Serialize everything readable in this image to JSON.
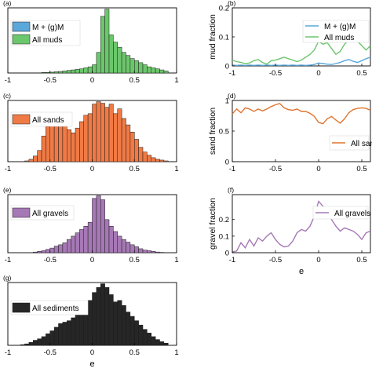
{
  "chart_data": [
    {
      "id": "a",
      "panel_label": "(a)",
      "type": "bar",
      "stacked": false,
      "xlim": [
        -1,
        1
      ],
      "xticks": [
        -1,
        -0.5,
        0,
        0.5,
        1
      ],
      "xtick_labels": [
        "-1",
        "-0.5",
        "0",
        "0.5",
        "1"
      ],
      "bin_edges": [
        -0.6,
        -0.55,
        -0.5,
        -0.45,
        -0.4,
        -0.35,
        -0.3,
        -0.25,
        -0.2,
        -0.15,
        -0.1,
        -0.05,
        0,
        0.05,
        0.1,
        0.15,
        0.2,
        0.25,
        0.3,
        0.35,
        0.4,
        0.45,
        0.5,
        0.55,
        0.6,
        0.65,
        0.7,
        0.75,
        0.8,
        0.85,
        0.9
      ],
      "series": [
        {
          "name": "M + (g)M",
          "color": "#5aa7da",
          "values": [
            0,
            0,
            0,
            0,
            0,
            0,
            0,
            0,
            0,
            0,
            0,
            0.005,
            0.02,
            0.06,
            0.1,
            0.1,
            0.07,
            0.055,
            0.07,
            0.06,
            0.03,
            0.015,
            0.01,
            0.008,
            0.006,
            0.004,
            0.003,
            0.002,
            0.001,
            0.001
          ]
        },
        {
          "name": "All muds",
          "color": "#6cc66c",
          "values": [
            0.005,
            0.005,
            0.008,
            0.012,
            0.015,
            0.02,
            0.025,
            0.03,
            0.035,
            0.04,
            0.05,
            0.06,
            0.08,
            0.2,
            0.55,
            0.62,
            0.37,
            0.3,
            0.25,
            0.2,
            0.17,
            0.14,
            0.12,
            0.1,
            0.08,
            0.06,
            0.05,
            0.04,
            0.03,
            0.02
          ]
        }
      ],
      "legend_location": "top-left"
    },
    {
      "id": "b",
      "panel_label": "(b)",
      "type": "line",
      "ylabel": "mud fraction",
      "xlim": [
        -1,
        0.6
      ],
      "ylim": [
        0,
        0.2
      ],
      "xticks": [
        -1,
        -0.5,
        0,
        0.5
      ],
      "xtick_labels": [
        "-1",
        "-0.5",
        "0",
        "0.5"
      ],
      "yticks": [
        0,
        0.1,
        0.2
      ],
      "ytick_labels": [
        "0",
        "0.1",
        "0.2"
      ],
      "x": [
        -1,
        -0.95,
        -0.9,
        -0.85,
        -0.8,
        -0.75,
        -0.7,
        -0.65,
        -0.6,
        -0.55,
        -0.5,
        -0.45,
        -0.4,
        -0.35,
        -0.3,
        -0.25,
        -0.2,
        -0.15,
        -0.1,
        -0.05,
        0,
        0.05,
        0.1,
        0.15,
        0.2,
        0.25,
        0.3,
        0.35,
        0.4,
        0.45,
        0.5,
        0.55,
        0.6
      ],
      "series": [
        {
          "name": "M + (g)M",
          "color": "#5aa7da",
          "values": [
            0.003,
            0.002,
            0.003,
            0.002,
            0.003,
            0.002,
            0.003,
            0.002,
            0.003,
            0.002,
            0.003,
            0.002,
            0.003,
            0.002,
            0.003,
            0.002,
            0.003,
            0.002,
            0.003,
            0.005,
            0.01,
            0.008,
            0.006,
            0.005,
            0.008,
            0.012,
            0.018,
            0.022,
            0.016,
            0.012,
            0.018,
            0.025,
            0.03
          ]
        },
        {
          "name": "All muds",
          "color": "#6cc66c",
          "values": [
            0.02,
            0.015,
            0.012,
            0.008,
            0.01,
            0.018,
            0.022,
            0.012,
            0.006,
            0.018,
            0.02,
            0.025,
            0.03,
            0.025,
            0.02,
            0.015,
            0.02,
            0.03,
            0.04,
            0.055,
            0.085,
            0.075,
            0.08,
            0.06,
            0.04,
            0.05,
            0.075,
            0.09,
            0.1,
            0.085,
            0.07,
            0.055,
            0.07
          ]
        }
      ],
      "legend_location": "top-right"
    },
    {
      "id": "c",
      "panel_label": "(c)",
      "type": "bar",
      "xlim": [
        -1,
        1
      ],
      "xticks": [
        -1,
        -0.5,
        0,
        0.5,
        1
      ],
      "xtick_labels": [
        "-1",
        "-0.5",
        "0",
        "0.5",
        "1"
      ],
      "bin_edges": [
        -0.8,
        -0.75,
        -0.7,
        -0.65,
        -0.6,
        -0.55,
        -0.5,
        -0.45,
        -0.4,
        -0.35,
        -0.3,
        -0.25,
        -0.2,
        -0.15,
        -0.1,
        -0.05,
        0,
        0.05,
        0.1,
        0.15,
        0.2,
        0.25,
        0.3,
        0.35,
        0.4,
        0.45,
        0.5,
        0.55,
        0.6,
        0.65,
        0.7,
        0.75,
        0.8,
        0.85,
        0.9
      ],
      "series": [
        {
          "name": "All sands",
          "color": "#f07a45",
          "values": [
            0.01,
            0.03,
            0.07,
            0.14,
            0.32,
            0.44,
            0.52,
            0.48,
            0.47,
            0.45,
            0.4,
            0.36,
            0.42,
            0.5,
            0.58,
            0.6,
            0.72,
            0.75,
            0.73,
            0.68,
            0.72,
            0.6,
            0.66,
            0.54,
            0.46,
            0.37,
            0.28,
            0.18,
            0.12,
            0.08,
            0.05,
            0.03,
            0.02,
            0.01
          ]
        }
      ],
      "legend_location": "top-left"
    },
    {
      "id": "d",
      "panel_label": "(d)",
      "type": "line",
      "ylabel": "sand fraction",
      "xlim": [
        -1,
        0.6
      ],
      "ylim": [
        0,
        1
      ],
      "xticks": [
        -1,
        -0.5,
        0,
        0.5
      ],
      "xtick_labels": [
        "-1",
        "-0.5",
        "0",
        "0.5"
      ],
      "yticks": [
        0,
        0.5,
        1
      ],
      "ytick_labels": [
        "0",
        "0.5",
        "1"
      ],
      "x": [
        -1,
        -0.95,
        -0.9,
        -0.85,
        -0.8,
        -0.75,
        -0.7,
        -0.65,
        -0.6,
        -0.55,
        -0.5,
        -0.45,
        -0.4,
        -0.35,
        -0.3,
        -0.25,
        -0.2,
        -0.15,
        -0.1,
        -0.05,
        0,
        0.05,
        0.1,
        0.15,
        0.2,
        0.25,
        0.3,
        0.35,
        0.4,
        0.45,
        0.5,
        0.55,
        0.6
      ],
      "series": [
        {
          "name": "All sands",
          "color": "#e0752f",
          "values": [
            0.78,
            0.86,
            0.8,
            0.88,
            0.86,
            0.82,
            0.86,
            0.83,
            0.86,
            0.9,
            0.93,
            0.95,
            0.88,
            0.85,
            0.84,
            0.86,
            0.82,
            0.82,
            0.79,
            0.74,
            0.64,
            0.62,
            0.7,
            0.74,
            0.68,
            0.63,
            0.7,
            0.8,
            0.85,
            0.87,
            0.88,
            0.87,
            0.84
          ]
        }
      ],
      "legend_location": "bottom-right"
    },
    {
      "id": "e",
      "panel_label": "(e)",
      "type": "bar",
      "xlim": [
        -1,
        1
      ],
      "xticks": [
        -1,
        -0.5,
        0,
        0.5,
        1
      ],
      "xtick_labels": [
        "-1",
        "-0.5",
        "0",
        "0.5",
        "1"
      ],
      "bin_edges": [
        -0.7,
        -0.65,
        -0.6,
        -0.55,
        -0.5,
        -0.45,
        -0.4,
        -0.35,
        -0.3,
        -0.25,
        -0.2,
        -0.15,
        -0.1,
        -0.05,
        0,
        0.05,
        0.1,
        0.15,
        0.2,
        0.25,
        0.3,
        0.35,
        0.4,
        0.45,
        0.5,
        0.55,
        0.6,
        0.65,
        0.7,
        0.75,
        0.8,
        0.85
      ],
      "series": [
        {
          "name": "All gravels",
          "color": "#a678b5",
          "values": [
            0.01,
            0.02,
            0.03,
            0.05,
            0.07,
            0.1,
            0.12,
            0.15,
            0.2,
            0.25,
            0.3,
            0.35,
            0.4,
            0.46,
            0.82,
            0.86,
            0.8,
            0.5,
            0.4,
            0.32,
            0.25,
            0.2,
            0.16,
            0.12,
            0.09,
            0.06,
            0.04,
            0.03,
            0.02,
            0.01,
            0.005
          ]
        }
      ],
      "legend_location": "top-left"
    },
    {
      "id": "f",
      "panel_label": "(f)",
      "type": "line",
      "xlabel": "e",
      "ylabel": "gravel fraction",
      "xlim": [
        -1,
        0.6
      ],
      "ylim": [
        0,
        0.35
      ],
      "xticks": [
        -1,
        -0.5,
        0,
        0.5
      ],
      "xtick_labels": [
        "-1",
        "-0.5",
        "0",
        "0.5"
      ],
      "yticks": [
        0,
        0.1,
        0.2
      ],
      "ytick_labels": [
        "0",
        "0.1",
        "0.2"
      ],
      "x": [
        -1,
        -0.95,
        -0.9,
        -0.85,
        -0.8,
        -0.75,
        -0.7,
        -0.65,
        -0.6,
        -0.55,
        -0.5,
        -0.45,
        -0.4,
        -0.35,
        -0.3,
        -0.25,
        -0.2,
        -0.15,
        -0.1,
        -0.05,
        0,
        0.05,
        0.1,
        0.15,
        0.2,
        0.25,
        0.3,
        0.35,
        0.4,
        0.45,
        0.5,
        0.55,
        0.6
      ],
      "series": [
        {
          "name": "All gravels",
          "color": "#a678b5",
          "values": [
            0.005,
            0.01,
            0.06,
            0.03,
            0.08,
            0.04,
            0.09,
            0.07,
            0.1,
            0.12,
            0.08,
            0.05,
            0.035,
            0.04,
            0.07,
            0.12,
            0.14,
            0.13,
            0.16,
            0.22,
            0.31,
            0.28,
            0.27,
            0.2,
            0.16,
            0.13,
            0.15,
            0.14,
            0.13,
            0.11,
            0.08,
            0.12,
            0.13
          ]
        }
      ],
      "legend_location": "top-right"
    },
    {
      "id": "g",
      "panel_label": "(g)",
      "type": "bar",
      "xlabel": "e",
      "xlim": [
        -1,
        1
      ],
      "xticks": [
        -1,
        -0.5,
        0,
        0.5,
        1
      ],
      "xtick_labels": [
        "-1",
        "-0.5",
        "0",
        "0.5",
        "1"
      ],
      "bin_edges": [
        -0.85,
        -0.8,
        -0.75,
        -0.7,
        -0.65,
        -0.6,
        -0.55,
        -0.5,
        -0.45,
        -0.4,
        -0.35,
        -0.3,
        -0.25,
        -0.2,
        -0.15,
        -0.1,
        -0.05,
        0,
        0.05,
        0.1,
        0.15,
        0.2,
        0.25,
        0.3,
        0.35,
        0.4,
        0.45,
        0.5,
        0.55,
        0.6,
        0.65,
        0.7,
        0.75,
        0.8,
        0.85,
        0.9
      ],
      "series": [
        {
          "name": "All sediments",
          "color": "#262626",
          "values": [
            0.01,
            0.02,
            0.04,
            0.07,
            0.09,
            0.12,
            0.16,
            0.2,
            0.25,
            0.3,
            0.32,
            0.34,
            0.38,
            0.44,
            0.5,
            0.55,
            0.62,
            0.73,
            0.8,
            0.85,
            0.8,
            0.7,
            0.6,
            0.62,
            0.55,
            0.46,
            0.4,
            0.34,
            0.28,
            0.22,
            0.17,
            0.12,
            0.08,
            0.05,
            0.03
          ]
        }
      ],
      "legend_location": "top-left"
    }
  ]
}
